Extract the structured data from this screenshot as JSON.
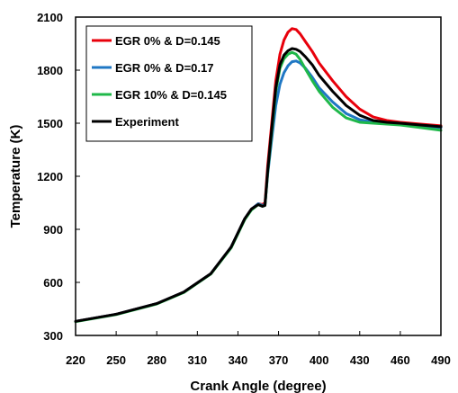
{
  "chart_data": {
    "type": "line",
    "xlabel": "Crank Angle (degree)",
    "ylabel": "Temperature (K)",
    "xlim": [
      220,
      490
    ],
    "ylim": [
      300,
      2100
    ],
    "xticks": [
      220,
      250,
      280,
      310,
      340,
      370,
      400,
      430,
      460,
      490
    ],
    "yticks": [
      300,
      600,
      900,
      1200,
      1500,
      1800,
      2100
    ],
    "grid": false,
    "legend_position": "top-left",
    "series": [
      {
        "name": "EGR 0% & D=0.145",
        "color": "#e8000b",
        "x": [
          220,
          250,
          280,
          300,
          320,
          335,
          345,
          350,
          355,
          358,
          360,
          362,
          365,
          368,
          371,
          374,
          377,
          380,
          383,
          386,
          390,
          395,
          400,
          410,
          420,
          430,
          440,
          450,
          460,
          475,
          490
        ],
        "y": [
          380,
          420,
          480,
          545,
          650,
          800,
          960,
          1015,
          1045,
          1040,
          1050,
          1260,
          1500,
          1740,
          1890,
          1970,
          2015,
          2035,
          2030,
          2005,
          1960,
          1905,
          1840,
          1740,
          1650,
          1580,
          1535,
          1515,
          1505,
          1495,
          1485
        ]
      },
      {
        "name": "EGR 0% & D=0.17",
        "color": "#1f77c4",
        "x": [
          220,
          250,
          280,
          300,
          320,
          335,
          345,
          350,
          355,
          358,
          360,
          362,
          365,
          368,
          371,
          374,
          377,
          380,
          383,
          386,
          390,
          395,
          400,
          410,
          420,
          430,
          440,
          450,
          460,
          475,
          490
        ],
        "y": [
          380,
          420,
          480,
          545,
          650,
          800,
          960,
          1015,
          1045,
          1035,
          1040,
          1210,
          1410,
          1600,
          1720,
          1785,
          1825,
          1848,
          1852,
          1840,
          1810,
          1760,
          1700,
          1620,
          1555,
          1520,
          1505,
          1500,
          1495,
          1485,
          1475
        ]
      },
      {
        "name": "EGR 10% & D=0.145",
        "color": "#1fb84a",
        "x": [
          220,
          250,
          280,
          300,
          320,
          335,
          345,
          350,
          355,
          358,
          360,
          362,
          365,
          368,
          371,
          374,
          377,
          380,
          383,
          386,
          390,
          395,
          400,
          410,
          420,
          430,
          440,
          450,
          460,
          475,
          490
        ],
        "y": [
          378,
          418,
          478,
          543,
          648,
          795,
          955,
          1010,
          1040,
          1030,
          1035,
          1220,
          1450,
          1680,
          1810,
          1865,
          1890,
          1900,
          1890,
          1860,
          1805,
          1740,
          1680,
          1590,
          1530,
          1505,
          1500,
          1495,
          1490,
          1475,
          1460
        ]
      },
      {
        "name": "Experiment",
        "color": "#000000",
        "x": [
          220,
          250,
          280,
          300,
          320,
          335,
          345,
          350,
          355,
          358,
          360,
          362,
          365,
          368,
          371,
          374,
          377,
          380,
          383,
          386,
          390,
          395,
          400,
          410,
          420,
          430,
          440,
          450,
          460,
          475,
          490
        ],
        "y": [
          380,
          420,
          480,
          545,
          650,
          800,
          960,
          1015,
          1040,
          1030,
          1035,
          1230,
          1470,
          1700,
          1830,
          1885,
          1910,
          1922,
          1918,
          1905,
          1875,
          1830,
          1770,
          1680,
          1600,
          1545,
          1515,
          1505,
          1500,
          1490,
          1480
        ]
      }
    ]
  }
}
